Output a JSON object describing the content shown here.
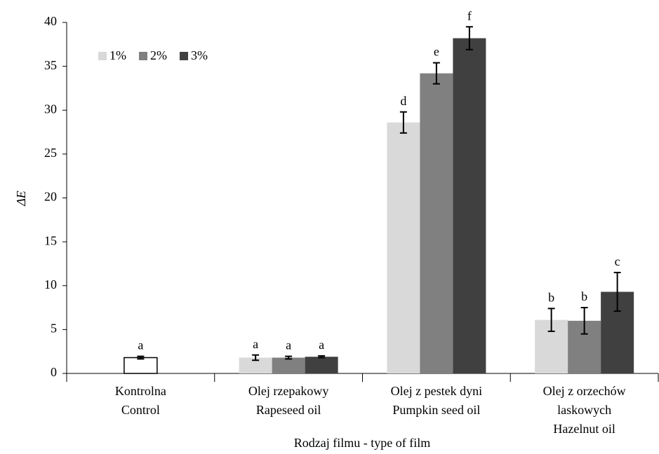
{
  "chart_data": {
    "type": "bar",
    "y_label": "ΔE",
    "x_label": "Rodzaj filmu - type of film",
    "categories": [
      [
        "Kontrolna",
        "Control"
      ],
      [
        "Olej rzepakowy",
        "Rapeseed oil"
      ],
      [
        "Olej z pestek dyni",
        "Pumpkin seed oil"
      ],
      [
        "Olej z orzechów",
        "laskowych",
        "Hazelnut oil"
      ]
    ],
    "control_bar": {
      "value": 1.8,
      "error": 0.15,
      "letter": "a",
      "color": "#ffffff"
    },
    "series": [
      {
        "name": "1%",
        "color": "#d9d9d9",
        "values": [
          null,
          1.8,
          28.6,
          6.1
        ],
        "errors": [
          null,
          0.3,
          1.2,
          1.3
        ],
        "letters": [
          null,
          "a",
          "d",
          "b"
        ]
      },
      {
        "name": "2%",
        "color": "#808080",
        "values": [
          null,
          1.8,
          34.2,
          6.0
        ],
        "errors": [
          null,
          0.15,
          1.2,
          1.5
        ],
        "letters": [
          null,
          "a",
          "e",
          "b"
        ]
      },
      {
        "name": "3%",
        "color": "#404040",
        "values": [
          null,
          1.9,
          38.2,
          9.3
        ],
        "errors": [
          null,
          0.1,
          1.3,
          2.2
        ],
        "letters": [
          null,
          "a",
          "f",
          "c"
        ]
      }
    ],
    "ylim": [
      0,
      40
    ],
    "yticks": [
      0,
      5,
      10,
      15,
      20,
      25,
      30,
      35,
      40
    ]
  }
}
